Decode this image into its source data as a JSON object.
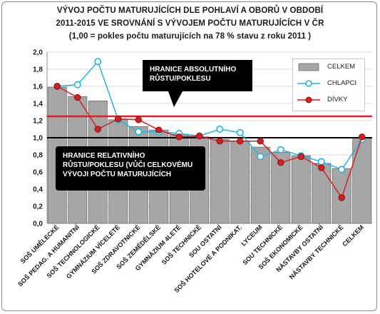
{
  "chart_data": {
    "type": "bar",
    "title_lines": [
      "VÝVOJ POČTU MATURUJÍCÍCH DLE POHLAVÍ A OBORŮ V OBDOBÍ",
      "2011-2015 VE SROVNÁNÍ S VÝVOJEM POČTU MATURUJÍCÍCH V ČR",
      "(1,00 = pokles počtu maturujících na 78 % stavu z roku 2011 )"
    ],
    "categories": [
      "SOŠ UMĚLECKÉ",
      "SOŠ PEDAG. A HUMANITNÍ",
      "SOŠ TECHNOLOGICKÉ",
      "GYMNÁZIUM VÍCELETÉ",
      "SOŠ ZDRAVOTNICKÉ",
      "SOŠ ZEMĚDĚLSKÉ",
      "GYMNÁZIUM 4LETÉ",
      "SOŠ TECHNICKÉ",
      "SOU OSTATNÍ",
      "SOŠ HOTELOVÉ A PODNIKAT.",
      "LYCEUM",
      "SOU TECHNICKÉ",
      "SOŠ EKONOMICKÉ",
      "NÁSTAVBY OSTATNÍ",
      "NÁSTAVBY TECHNICKÉ",
      "CELKEM"
    ],
    "series": [
      {
        "name": "CELKEM",
        "kind": "bar",
        "color": "#a6a6a6",
        "values": [
          1.59,
          1.48,
          1.43,
          1.21,
          1.13,
          1.09,
          1.04,
          1.01,
          0.98,
          0.96,
          0.89,
          0.83,
          0.79,
          0.7,
          0.64,
          1.0
        ]
      },
      {
        "name": "CHLAPCI",
        "kind": "line",
        "color": "#1fb4e4",
        "values": [
          1.6,
          1.62,
          1.89,
          1.21,
          1.07,
          1.07,
          1.05,
          1.02,
          1.1,
          1.06,
          0.78,
          0.86,
          0.79,
          0.72,
          0.63,
          0.98
        ]
      },
      {
        "name": "DÍVKY",
        "kind": "line",
        "color": "#d42020",
        "values": [
          1.6,
          1.47,
          1.1,
          1.22,
          1.21,
          1.09,
          1.01,
          1.02,
          0.96,
          0.96,
          0.96,
          0.71,
          0.78,
          0.65,
          0.3,
          1.01
        ]
      }
    ],
    "reference_lines": [
      {
        "value": 1.25,
        "color": "#e02020",
        "label": "HRANICE ABSOLUTNÍHO RŮSTU/POKLESU"
      },
      {
        "value": 1.0,
        "color": "#000000",
        "label": "HRANICE RELATIVNÍHO RŮSTU/POKLESU (VŮČI CELKOVÉMU VÝVOJI POČTU MATURUJÍCÍCH"
      }
    ],
    "annotations": {
      "absolute": [
        "HRANICE ABSOLUTNÍHO",
        "RŮSTU/POKLESU"
      ],
      "relative": [
        "HRANICE RELATIVNÍHO",
        "RŮSTU/POKLESU (VŮČI CELKOVÉMU",
        "VÝVOJI POČTU MATURUJÍCÍCH"
      ]
    },
    "y_ticks": [
      "0,0",
      "0,2",
      "0,4",
      "0,6",
      "0,8",
      "1,0",
      "1,2",
      "1,4",
      "1,6",
      "1,8",
      "2,0"
    ],
    "ylim": [
      0,
      2.0
    ],
    "grid": true,
    "legend_position": "top-right"
  }
}
